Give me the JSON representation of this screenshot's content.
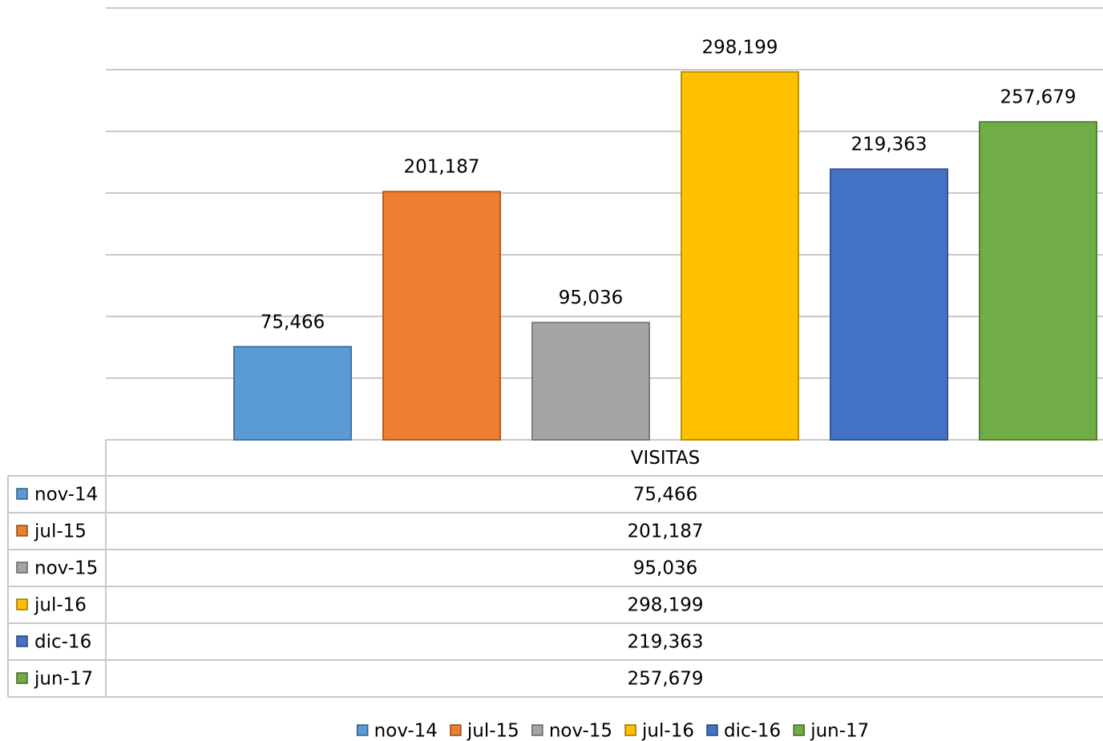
{
  "chart_data": {
    "type": "bar",
    "categories": [
      "VISITAS"
    ],
    "series": [
      {
        "name": "nov-14",
        "color": "#5b9bd5",
        "values": [
          75466
        ],
        "value_labels": [
          "75,466"
        ]
      },
      {
        "name": "jul-15",
        "color": "#ed7d31",
        "values": [
          201187
        ],
        "value_labels": [
          "201,187"
        ]
      },
      {
        "name": "nov-15",
        "color": "#a5a5a5",
        "values": [
          95036
        ],
        "value_labels": [
          "95,036"
        ]
      },
      {
        "name": "jul-16",
        "color": "#ffc000",
        "values": [
          298199
        ],
        "value_labels": [
          "298,199"
        ]
      },
      {
        "name": "dic-16",
        "color": "#4472c4",
        "values": [
          219363
        ],
        "value_labels": [
          "219,363"
        ]
      },
      {
        "name": "jun-17",
        "color": "#70ad47",
        "values": [
          257679
        ],
        "value_labels": [
          "257,679"
        ]
      }
    ],
    "ylim": [
      0,
      350000
    ],
    "yticks": [
      0,
      50000,
      100000,
      150000,
      200000,
      250000,
      300000,
      350000
    ],
    "grid": true,
    "legend": "bottom",
    "data_table": true
  }
}
